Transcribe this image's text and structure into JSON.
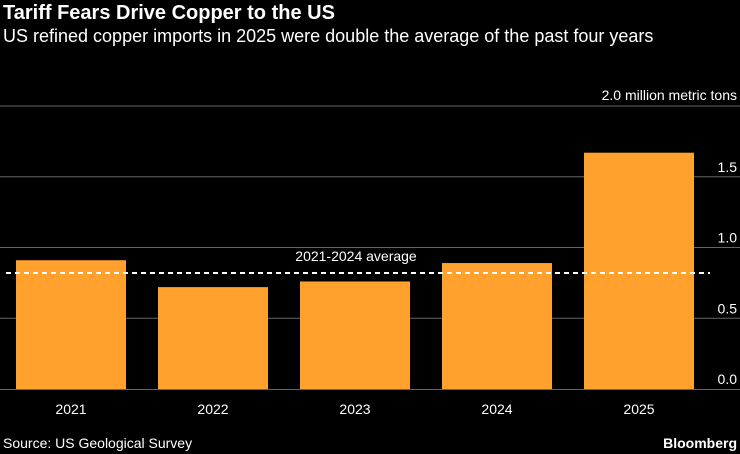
{
  "header": {
    "title": "Tariff Fears Drive Copper to the US",
    "subtitle": "US refined copper imports in 2025 were double the average of the past four years"
  },
  "footer": {
    "source": "Source: US Geological Survey",
    "brand": "Bloomberg"
  },
  "colors": {
    "background": "#000000",
    "bar": "#ffa12c",
    "grid": "#666666",
    "text": "#ffffff"
  },
  "chart_data": {
    "type": "bar",
    "title": "Tariff Fears Drive Copper to the US",
    "subtitle": "US refined copper imports in 2025 were double the average of the past four years",
    "unit_label": "2.0 million metric tons",
    "categories": [
      "2021",
      "2022",
      "2023",
      "2024",
      "2025"
    ],
    "values": [
      0.91,
      0.72,
      0.76,
      0.89,
      1.67
    ],
    "ylim": [
      0,
      2.0
    ],
    "yticks": [
      {
        "value": 0,
        "label": "0.0"
      },
      {
        "value": 0.5,
        "label": "0.5"
      },
      {
        "value": 1.0,
        "label": "1.0"
      },
      {
        "value": 1.5,
        "label": "1.5"
      },
      {
        "value": 2.0,
        "label": "2.0 million metric tons"
      }
    ],
    "y_axis_position": "right",
    "grid": true,
    "reference_line": {
      "value": 0.82,
      "label": "2021-2024 average",
      "style": "dashed"
    },
    "source": "Source: US Geological Survey"
  }
}
